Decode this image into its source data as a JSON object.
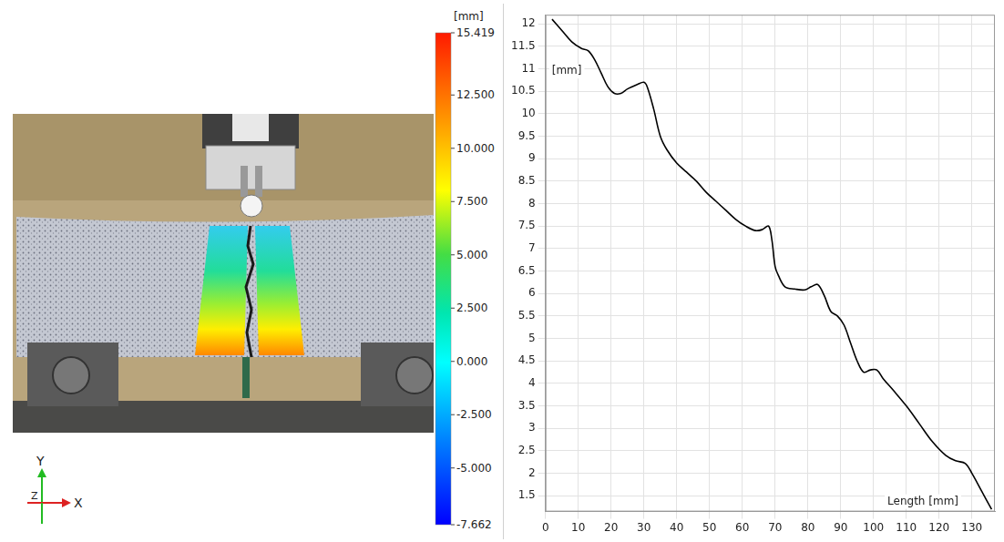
{
  "chart_data": {
    "type": "line",
    "x_label": "Length [mm]",
    "y_label": "[mm]",
    "x": [
      2,
      5,
      8,
      11,
      13,
      15,
      17,
      19,
      21,
      23,
      25,
      28,
      30,
      31,
      33,
      35,
      37,
      40,
      43,
      46,
      49,
      52,
      55,
      58,
      61,
      64,
      66,
      68,
      69,
      70,
      71,
      73,
      76,
      79,
      81,
      83,
      85,
      87,
      89,
      91,
      93,
      95,
      97,
      99,
      101,
      103,
      106,
      110,
      114,
      118,
      122,
      125,
      128,
      130,
      133,
      136
    ],
    "values": [
      12.1,
      11.85,
      11.6,
      11.45,
      11.4,
      11.2,
      10.9,
      10.6,
      10.45,
      10.45,
      10.55,
      10.65,
      10.7,
      10.6,
      10.1,
      9.5,
      9.2,
      8.9,
      8.7,
      8.5,
      8.25,
      8.05,
      7.85,
      7.65,
      7.5,
      7.4,
      7.42,
      7.5,
      7.2,
      6.6,
      6.4,
      6.15,
      6.1,
      6.08,
      6.15,
      6.2,
      5.95,
      5.6,
      5.5,
      5.3,
      4.9,
      4.5,
      4.25,
      4.3,
      4.3,
      4.1,
      3.85,
      3.5,
      3.1,
      2.7,
      2.4,
      2.28,
      2.22,
      2.0,
      1.6,
      1.2
    ],
    "color": "#000000",
    "xlim": [
      0,
      137
    ],
    "xticks": [
      0,
      10,
      20,
      30,
      40,
      50,
      60,
      70,
      80,
      90,
      100,
      110,
      120,
      130
    ],
    "ylim": [
      1.15,
      12.2
    ],
    "yticks": [
      1.5,
      2,
      2.5,
      3,
      3.5,
      4,
      4.5,
      5,
      5.5,
      6,
      6.5,
      7,
      7.5,
      8,
      8.5,
      9,
      9.5,
      10,
      10.5,
      11,
      11.5,
      12
    ],
    "grid": true
  },
  "colorbar": {
    "title": "[mm]",
    "range": [
      -7.662,
      15.419
    ],
    "ticks": [
      15.419,
      {
        "value": 12.5,
        "label": "12.500"
      },
      {
        "value": 10,
        "label": "10.000"
      },
      {
        "value": 7.5,
        "label": "7.500"
      },
      {
        "value": 5,
        "label": "5.000"
      },
      {
        "value": 2.5,
        "label": "2.500"
      },
      {
        "value": 0,
        "label": "0.000"
      },
      {
        "value": -2.5,
        "label": "-2.500"
      },
      {
        "value": -5,
        "label": "-5.000"
      },
      -7.662
    ]
  },
  "axes_triad": {
    "labels": [
      "Y",
      "Z",
      "X"
    ]
  }
}
